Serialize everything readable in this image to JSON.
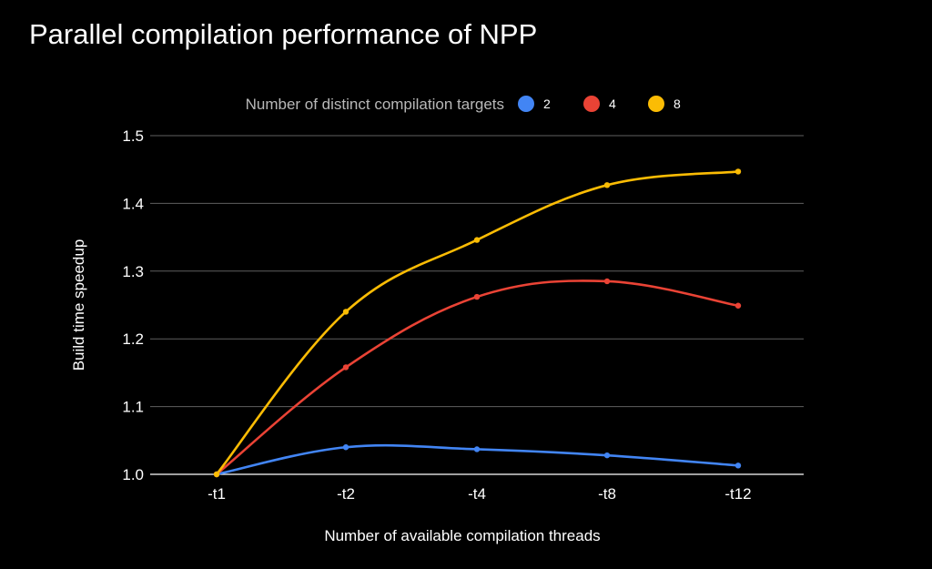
{
  "chart_data": {
    "type": "line",
    "title": "Parallel compilation performance of NPP",
    "xlabel": "Number of available compilation threads",
    "ylabel": "Build time speedup",
    "categories": [
      "-t1",
      "-t2",
      "-t4",
      "-t8",
      "-t12"
    ],
    "ylim": [
      1.0,
      1.5
    ],
    "yticks": [
      "1.0",
      "1.1",
      "1.2",
      "1.3",
      "1.4",
      "1.5"
    ],
    "grid": true,
    "legend": {
      "title": "Number of distinct compilation targets",
      "placement": "top"
    },
    "series": [
      {
        "name": "2",
        "color": "#4285f4",
        "values": [
          1.0,
          1.04,
          1.037,
          1.028,
          1.013
        ]
      },
      {
        "name": "4",
        "color": "#ea4335",
        "values": [
          1.0,
          1.158,
          1.262,
          1.285,
          1.249
        ]
      },
      {
        "name": "8",
        "color": "#fbbc04",
        "values": [
          1.0,
          1.24,
          1.346,
          1.427,
          1.447
        ]
      }
    ]
  }
}
